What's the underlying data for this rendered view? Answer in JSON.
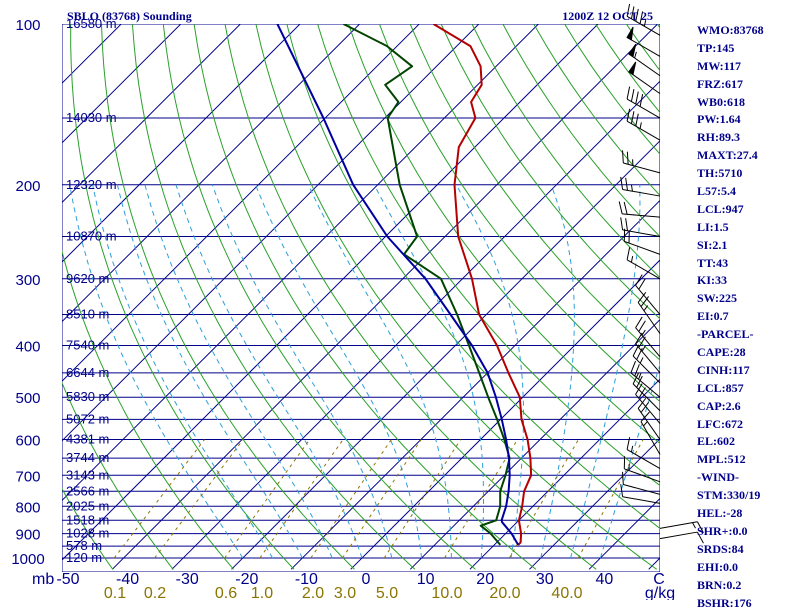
{
  "title": "SBLO (83768) Sounding",
  "valid_time": "1200Z 12 OCT 25",
  "chart_data": {
    "type": "line",
    "title": "SBLO (83768) Sounding",
    "subtitle": "1200Z 12 OCT 25",
    "x_unit_label": "C",
    "y_unit_label": "mb",
    "mixing_ratio_unit_label": "g/kg",
    "temperature_ticks": [
      "-50",
      "-40",
      "-30",
      "-20",
      "-10",
      "0",
      "10",
      "20",
      "30",
      "40"
    ],
    "temperature_tick_values": [
      -50,
      -40,
      -30,
      -20,
      -10,
      0,
      10,
      20,
      30,
      40
    ],
    "mixing_ratio_ticks": [
      "0.1",
      "0.2",
      "0.6",
      "1.0",
      "2.0",
      "3.0",
      "5.0",
      "10.0",
      "20.0",
      "40.0"
    ],
    "pressure_levels": [
      {
        "p": 100,
        "label": "100",
        "height": "16580 m"
      },
      {
        "p": 150,
        "label": "",
        "height": "14030 m"
      },
      {
        "p": 200,
        "label": "200",
        "height": "12320 m"
      },
      {
        "p": 250,
        "label": "",
        "height": "10870 m"
      },
      {
        "p": 300,
        "label": "300",
        "height": "9620 m"
      },
      {
        "p": 350,
        "label": "",
        "height": "8510 m"
      },
      {
        "p": 400,
        "label": "400",
        "height": "7540 m"
      },
      {
        "p": 450,
        "label": "",
        "height": "6644 m"
      },
      {
        "p": 500,
        "label": "500",
        "height": "5830 m"
      },
      {
        "p": 550,
        "label": "",
        "height": "5072 m"
      },
      {
        "p": 600,
        "label": "600",
        "height": "4381 m"
      },
      {
        "p": 650,
        "label": "",
        "height": "3744 m"
      },
      {
        "p": 700,
        "label": "700",
        "height": "3143 m"
      },
      {
        "p": 750,
        "label": "",
        "height": "2566 m"
      },
      {
        "p": 800,
        "label": "800",
        "height": "2025 m"
      },
      {
        "p": 850,
        "label": "",
        "height": "1518 m"
      },
      {
        "p": 900,
        "label": "900",
        "height": "1028 m"
      },
      {
        "p": 950,
        "label": "",
        "height": "578 m"
      },
      {
        "p": 1000,
        "label": "1000",
        "height": "120 m"
      }
    ],
    "series": [
      {
        "name": "Temperature",
        "color": "#b40000",
        "points": [
          [
            100,
            -77.6
          ],
          [
            110,
            -67.7
          ],
          [
            120,
            -62.6
          ],
          [
            130,
            -59.3
          ],
          [
            140,
            -58.2
          ],
          [
            150,
            -54.8
          ],
          [
            170,
            -52.7
          ],
          [
            200,
            -47.1
          ],
          [
            250,
            -37.8
          ],
          [
            300,
            -28.4
          ],
          [
            350,
            -21.2
          ],
          [
            400,
            -13.0
          ],
          [
            450,
            -6.5
          ],
          [
            500,
            -0.5
          ],
          [
            550,
            3.5
          ],
          [
            600,
            7.9
          ],
          [
            650,
            11.5
          ],
          [
            700,
            14.5
          ],
          [
            750,
            16.0
          ],
          [
            800,
            18.2
          ],
          [
            850,
            20.0
          ],
          [
            900,
            22.6
          ],
          [
            935,
            24.0
          ],
          [
            945,
            24.0
          ]
        ]
      },
      {
        "name": "Dewpoint",
        "color": "#004400",
        "points": [
          [
            100,
            -92.7
          ],
          [
            110,
            -81.7
          ],
          [
            120,
            -74.1
          ],
          [
            130,
            -75.5
          ],
          [
            140,
            -70.4
          ],
          [
            150,
            -69.5
          ],
          [
            200,
            -56.3
          ],
          [
            250,
            -44.7
          ],
          [
            270,
            -43.9
          ],
          [
            300,
            -33.6
          ],
          [
            350,
            -24.9
          ],
          [
            400,
            -17.7
          ],
          [
            450,
            -11.4
          ],
          [
            500,
            -5.8
          ],
          [
            550,
            -0.6
          ],
          [
            600,
            4.0
          ],
          [
            650,
            8.0
          ],
          [
            700,
            10.2
          ],
          [
            750,
            12.0
          ],
          [
            800,
            14.5
          ],
          [
            850,
            16.2
          ],
          [
            870,
            14.5
          ],
          [
            900,
            17.5
          ],
          [
            945,
            21.0
          ]
        ]
      },
      {
        "name": "Parcel path",
        "color": "#0000a0",
        "points": [
          [
            100,
            -103.8
          ],
          [
            150,
            -80.3
          ],
          [
            200,
            -64.1
          ],
          [
            250,
            -49.7
          ],
          [
            300,
            -36.2
          ],
          [
            350,
            -26.0
          ],
          [
            400,
            -17.2
          ],
          [
            450,
            -10.0
          ],
          [
            500,
            -4.5
          ],
          [
            550,
            0.2
          ],
          [
            600,
            4.3
          ],
          [
            650,
            7.9
          ],
          [
            700,
            10.9
          ],
          [
            750,
            13.4
          ],
          [
            800,
            15.5
          ],
          [
            850,
            17.1
          ],
          [
            857,
            17.5
          ],
          [
            900,
            21.0
          ],
          [
            945,
            24.0
          ]
        ]
      }
    ],
    "wind_barbs": [
      {
        "p": 105,
        "dir": 300,
        "spd": 45
      },
      {
        "p": 115,
        "dir": 300,
        "spd": 50
      },
      {
        "p": 125,
        "dir": 305,
        "spd": 55
      },
      {
        "p": 135,
        "dir": 305,
        "spd": 50
      },
      {
        "p": 150,
        "dir": 300,
        "spd": 40
      },
      {
        "p": 165,
        "dir": 300,
        "spd": 35
      },
      {
        "p": 190,
        "dir": 285,
        "spd": 25
      },
      {
        "p": 210,
        "dir": 280,
        "spd": 25
      },
      {
        "p": 230,
        "dir": 275,
        "spd": 20
      },
      {
        "p": 250,
        "dir": 280,
        "spd": 20
      },
      {
        "p": 270,
        "dir": 290,
        "spd": 20
      },
      {
        "p": 300,
        "dir": 300,
        "spd": 15
      },
      {
        "p": 350,
        "dir": 320,
        "spd": 20
      },
      {
        "p": 380,
        "dir": 325,
        "spd": 25
      },
      {
        "p": 420,
        "dir": 320,
        "spd": 25
      },
      {
        "p": 450,
        "dir": 320,
        "spd": 25
      },
      {
        "p": 470,
        "dir": 315,
        "spd": 25
      },
      {
        "p": 500,
        "dir": 310,
        "spd": 25
      },
      {
        "p": 530,
        "dir": 315,
        "spd": 20
      },
      {
        "p": 560,
        "dir": 320,
        "spd": 20
      },
      {
        "p": 600,
        "dir": 325,
        "spd": 20
      },
      {
        "p": 640,
        "dir": 330,
        "spd": 15
      },
      {
        "p": 680,
        "dir": 300,
        "spd": 15
      },
      {
        "p": 720,
        "dir": 290,
        "spd": 15
      },
      {
        "p": 760,
        "dir": 285,
        "spd": 10
      },
      {
        "p": 790,
        "dir": 280,
        "spd": 10
      },
      {
        "p": 880,
        "dir": 80,
        "spd": 15
      },
      {
        "p": 920,
        "dir": 80,
        "spd": 10
      }
    ]
  },
  "indices": [
    "WMO:83768",
    "TP:145",
    "MW:117",
    "FRZ:617",
    "WB0:618",
    "PW:1.64",
    "RH:89.3",
    "MAXT:27.4",
    "TH:5710",
    "L57:5.4",
    "LCL:947",
    "LI:1.5",
    "SI:2.1",
    "TT:43",
    "KI:33",
    "SW:225",
    "EI:0.7",
    "-PARCEL-",
    "CAPE:28",
    "CINH:117",
    "LCL:857",
    "CAP:2.6",
    "LFC:672",
    "EL:602",
    "MPL:512",
    "-WIND-",
    "STM:330/19",
    "HEL:-28",
    "SHR+:0.0",
    "SRDS:84",
    "EHI:0.0",
    "BRN:0.2",
    "BSHR:176"
  ],
  "colors": {
    "isobar": "#00008b",
    "isotherm": "#00008b",
    "dry_adiabat": "#2aa02a",
    "moist_adiabat": "#2f9fd8",
    "mixing_ratio": "#8b7500",
    "text": "#00008b"
  }
}
